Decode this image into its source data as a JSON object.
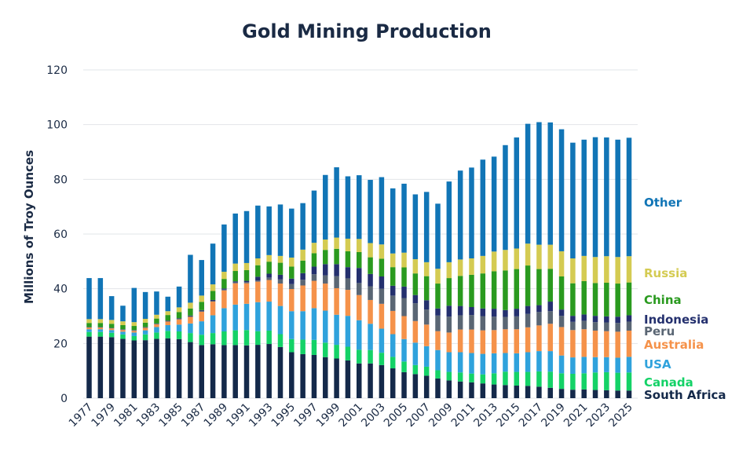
{
  "chart_data": {
    "type": "bar",
    "stacked": true,
    "title": "Gold Mining Production",
    "ylabel": "Millions of Troy Ounces",
    "xlabel": "",
    "ylim": [
      0,
      120
    ],
    "yticks": [
      0,
      20,
      40,
      60,
      80,
      100,
      120
    ],
    "grid": true,
    "legend_position": "right",
    "categories": [
      1977,
      1978,
      1979,
      1980,
      1981,
      1982,
      1983,
      1984,
      1985,
      1986,
      1987,
      1988,
      1989,
      1990,
      1991,
      1992,
      1993,
      1994,
      1995,
      1996,
      1997,
      1998,
      1999,
      2000,
      2001,
      2002,
      2003,
      2004,
      2005,
      2006,
      2007,
      2008,
      2009,
      2010,
      2011,
      2012,
      2013,
      2014,
      2015,
      2016,
      2017,
      2018,
      2019,
      2020,
      2021,
      2022,
      2023,
      2024,
      2025
    ],
    "xtick_labels": [
      "1977",
      "1979",
      "1981",
      "1983",
      "1985",
      "1987",
      "1989",
      "1991",
      "1993",
      "1995",
      "1997",
      "1999",
      "2001",
      "2003",
      "2005",
      "2007",
      "2009",
      "2011",
      "2013",
      "2015",
      "2017",
      "2019",
      "2021",
      "2023",
      "2025"
    ],
    "series": [
      {
        "name": "South Africa",
        "color": "#14294a",
        "values": [
          22.5,
          22.5,
          22.3,
          21.7,
          21.1,
          21.2,
          21.7,
          21.9,
          21.6,
          20.5,
          19.4,
          19.7,
          19.4,
          19.4,
          19.3,
          19.5,
          19.8,
          18.7,
          16.8,
          16.1,
          15.8,
          15.0,
          14.5,
          13.8,
          12.7,
          12.7,
          12.1,
          10.9,
          9.5,
          8.8,
          8.2,
          7.2,
          6.5,
          6.1,
          5.8,
          5.4,
          5.0,
          4.8,
          4.6,
          4.5,
          4.2,
          3.8,
          3.4,
          3.1,
          3.2,
          3.0,
          2.9,
          2.8,
          2.8
        ]
      },
      {
        "name": "Canada",
        "color": "#14d267",
        "values": [
          1.7,
          1.7,
          1.6,
          1.6,
          1.6,
          2.1,
          2.3,
          2.7,
          2.8,
          3.3,
          3.8,
          4.1,
          5.0,
          5.4,
          5.6,
          5.0,
          4.9,
          4.7,
          4.8,
          5.3,
          5.5,
          5.3,
          5.0,
          5.0,
          5.0,
          4.9,
          4.5,
          4.2,
          3.9,
          3.3,
          3.3,
          3.0,
          3.1,
          3.3,
          3.2,
          3.3,
          4.1,
          4.9,
          5.0,
          5.1,
          5.6,
          5.9,
          5.7,
          5.8,
          5.9,
          6.4,
          6.6,
          6.5,
          6.6
        ]
      },
      {
        "name": "USA",
        "color": "#2fa2dc",
        "values": [
          1.0,
          1.0,
          1.0,
          1.0,
          1.3,
          1.5,
          2.0,
          2.1,
          2.5,
          3.5,
          4.9,
          6.5,
          8.5,
          9.4,
          9.6,
          10.6,
          10.6,
          10.3,
          10.2,
          10.4,
          11.6,
          11.7,
          11.0,
          11.3,
          10.8,
          9.6,
          8.8,
          8.3,
          8.2,
          8.2,
          7.5,
          7.4,
          7.2,
          7.4,
          7.5,
          7.5,
          7.3,
          6.8,
          6.8,
          7.2,
          7.4,
          7.5,
          6.5,
          6.0,
          6.0,
          5.6,
          5.5,
          5.5,
          5.7
        ]
      },
      {
        "name": "Australia",
        "color": "#f5924a",
        "values": [
          0.6,
          0.6,
          0.6,
          0.6,
          0.6,
          0.9,
          1.0,
          1.3,
          1.9,
          2.4,
          3.5,
          5.0,
          6.5,
          7.8,
          7.5,
          7.5,
          7.9,
          8.2,
          8.1,
          9.4,
          10.0,
          9.9,
          9.7,
          9.5,
          9.2,
          8.7,
          9.1,
          8.5,
          8.4,
          7.9,
          7.9,
          6.9,
          7.2,
          8.3,
          8.6,
          8.6,
          8.5,
          8.7,
          8.8,
          9.1,
          9.4,
          10.0,
          10.4,
          10.0,
          10.1,
          9.7,
          9.5,
          9.5,
          9.6
        ]
      },
      {
        "name": "Peru",
        "color": "#5a6674",
        "values": [
          0.1,
          0.1,
          0.1,
          0.2,
          0.2,
          0.2,
          0.2,
          0.2,
          0.2,
          0.3,
          0.3,
          0.3,
          0.3,
          0.3,
          0.4,
          0.4,
          0.9,
          1.5,
          1.8,
          2.1,
          2.4,
          3.0,
          4.4,
          4.2,
          4.4,
          5.0,
          5.5,
          5.6,
          6.6,
          6.5,
          5.5,
          5.7,
          5.8,
          5.2,
          5.3,
          5.2,
          4.9,
          4.5,
          4.7,
          4.9,
          4.9,
          4.6,
          4.1,
          3.0,
          3.1,
          3.1,
          3.2,
          3.2,
          3.3
        ]
      },
      {
        "name": "Indonesia",
        "color": "#24306e",
        "values": [
          0.1,
          0.1,
          0.1,
          0.1,
          0.1,
          0.1,
          0.1,
          0.2,
          0.2,
          0.2,
          0.3,
          0.3,
          0.4,
          0.4,
          0.5,
          1.4,
          1.4,
          1.7,
          2.0,
          2.4,
          2.8,
          4.1,
          4.4,
          4.1,
          5.5,
          4.5,
          4.5,
          3.6,
          4.2,
          3.0,
          3.4,
          2.6,
          4.0,
          3.4,
          2.9,
          2.8,
          2.9,
          2.5,
          2.8,
          2.9,
          2.5,
          3.5,
          2.3,
          2.2,
          2.3,
          2.3,
          2.2,
          2.3,
          2.3
        ]
      },
      {
        "name": "China",
        "color": "#2a9a1f",
        "values": [
          1.5,
          1.5,
          1.5,
          1.5,
          1.5,
          1.6,
          1.8,
          2.0,
          2.3,
          2.6,
          3.0,
          3.3,
          3.5,
          3.8,
          3.9,
          4.2,
          4.4,
          4.4,
          4.4,
          4.6,
          4.9,
          5.2,
          5.6,
          5.8,
          5.8,
          6.1,
          6.5,
          6.8,
          7.0,
          7.9,
          8.8,
          9.1,
          10.1,
          11.0,
          11.8,
          12.8,
          13.7,
          14.5,
          14.5,
          14.8,
          13.2,
          12.0,
          12.1,
          11.9,
          12.2,
          12.0,
          12.3,
          12.1,
          12.0
        ]
      },
      {
        "name": "Russia",
        "color": "#d4cb52",
        "values": [
          1.4,
          1.4,
          1.4,
          1.4,
          1.4,
          1.4,
          1.4,
          1.4,
          1.7,
          2.1,
          2.3,
          2.4,
          2.6,
          2.7,
          2.6,
          2.5,
          2.4,
          2.5,
          3.3,
          4.0,
          3.8,
          3.8,
          4.1,
          4.6,
          4.8,
          5.2,
          5.2,
          5.0,
          5.4,
          5.2,
          5.1,
          5.4,
          5.8,
          6.0,
          6.0,
          6.4,
          7.2,
          7.5,
          7.5,
          8.0,
          8.9,
          8.8,
          9.2,
          9.1,
          9.2,
          9.5,
          9.7,
          9.7,
          9.6
        ]
      },
      {
        "name": "Other",
        "color": "#1175b6",
        "values": [
          15.0,
          15.0,
          8.7,
          5.7,
          12.5,
          9.8,
          8.5,
          5.3,
          7.6,
          17.5,
          13.0,
          14.9,
          17.3,
          18.3,
          19.0,
          19.3,
          17.8,
          18.8,
          17.9,
          17.0,
          19.1,
          23.6,
          25.7,
          22.8,
          23.3,
          23.1,
          24.6,
          23.8,
          25.2,
          23.7,
          25.7,
          23.8,
          29.5,
          32.5,
          33.2,
          35.2,
          34.7,
          38.3,
          40.6,
          43.8,
          44.8,
          44.7,
          44.6,
          42.3,
          42.5,
          43.8,
          43.4,
          42.9,
          43.3
        ]
      }
    ]
  }
}
